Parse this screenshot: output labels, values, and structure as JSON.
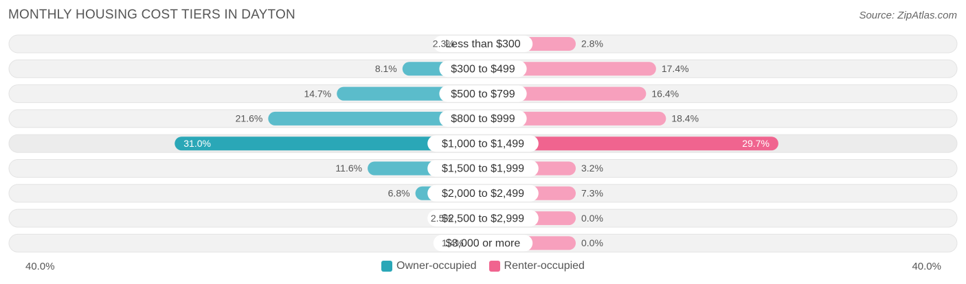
{
  "title": "MONTHLY HOUSING COST TIERS IN DAYTON",
  "source": "Source: ZipAtlas.com",
  "colors": {
    "owner": "#5bbccb",
    "owner_strong": "#2aa7b7",
    "renter": "#f7a0bd",
    "renter_strong": "#f0648f"
  },
  "chart_data": {
    "type": "bar",
    "orientation": "horizontal-diverging",
    "categories": [
      "Less than $300",
      "$300 to $499",
      "$500 to $799",
      "$800 to $999",
      "$1,000 to $1,499",
      "$1,500 to $1,999",
      "$2,000 to $2,499",
      "$2,500 to $2,999",
      "$3,000 or more"
    ],
    "series": [
      {
        "name": "Owner-occupied",
        "values": [
          2.3,
          8.1,
          14.7,
          21.6,
          31.0,
          11.6,
          6.8,
          2.5,
          1.4
        ],
        "labels": [
          "2.3%",
          "8.1%",
          "14.7%",
          "21.6%",
          "31.0%",
          "11.6%",
          "6.8%",
          "2.5%",
          "1.4%"
        ]
      },
      {
        "name": "Renter-occupied",
        "values": [
          2.8,
          17.4,
          16.4,
          18.4,
          29.7,
          3.2,
          7.3,
          0.0,
          0.0
        ],
        "labels": [
          "2.8%",
          "17.4%",
          "16.4%",
          "18.4%",
          "29.7%",
          "3.2%",
          "7.3%",
          "0.0%",
          "0.0%"
        ]
      }
    ],
    "highlight_index": 4,
    "xlim": [
      -40,
      40
    ],
    "axis_labels": {
      "left": "40.0%",
      "right": "40.0%"
    },
    "legend": [
      "Owner-occupied",
      "Renter-occupied"
    ]
  }
}
